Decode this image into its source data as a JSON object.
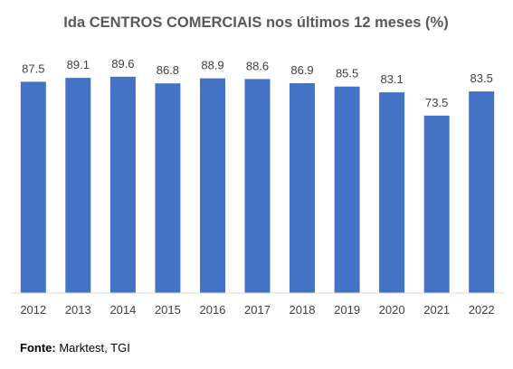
{
  "chart_data": {
    "type": "bar",
    "title": "Ida CENTROS COMERCIAIS nos últimos 12 meses (%)",
    "categories": [
      "2012",
      "2013",
      "2014",
      "2015",
      "2016",
      "2017",
      "2018",
      "2019",
      "2020",
      "2021",
      "2022"
    ],
    "values": [
      87.5,
      89.1,
      89.6,
      86.8,
      88.9,
      88.6,
      86.9,
      85.5,
      83.1,
      73.5,
      83.5
    ],
    "ylim": [
      0,
      100
    ],
    "grid": false,
    "legend": "none",
    "bar_color": "#4472C4",
    "baseline_color": "#D9D9D9"
  },
  "source": {
    "label": "Fonte:",
    "text": " Marktest, TGI"
  }
}
